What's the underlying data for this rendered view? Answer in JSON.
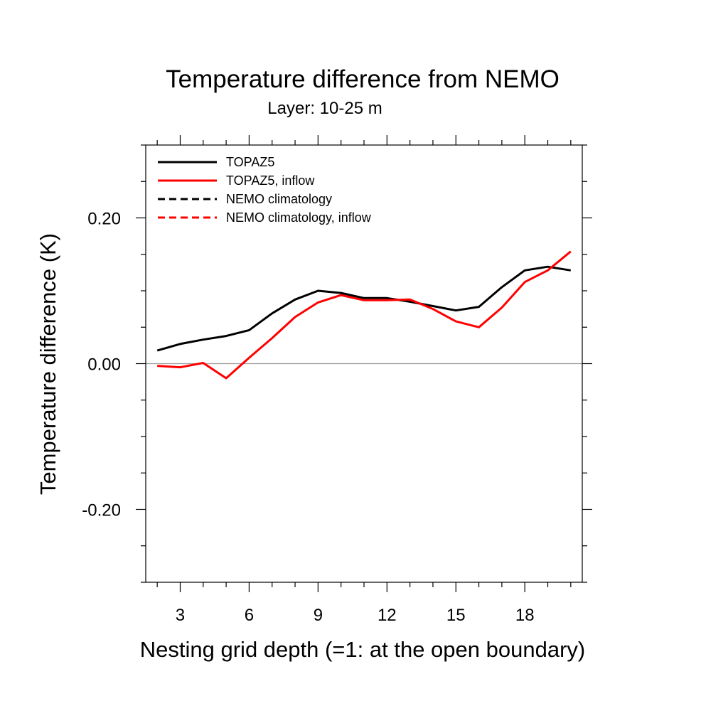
{
  "chart_data": {
    "type": "line",
    "title": "Temperature difference from NEMO",
    "subtitle": "Layer: 10-25 m",
    "xlabel": "Nesting grid depth (=1: at the open boundary)",
    "ylabel": "Temperature difference (K)",
    "xlim": [
      1.5,
      20.5
    ],
    "ylim": [
      -0.3,
      0.3
    ],
    "x_ticks": [
      3,
      6,
      9,
      12,
      15,
      18
    ],
    "x_tick_labels": [
      "3",
      "6",
      "9",
      "12",
      "15",
      "18"
    ],
    "y_ticks": [
      -0.2,
      0.0,
      0.2
    ],
    "y_tick_labels": [
      "-0.20",
      "0.00",
      "0.20"
    ],
    "zero_line": true,
    "grid": false,
    "legend_position": "top-left",
    "legend": [
      {
        "name": "TOPAZ5",
        "color": "#000000",
        "dash": "solid"
      },
      {
        "name": "TOPAZ5, inflow",
        "color": "#ff0000",
        "dash": "solid"
      },
      {
        "name": "NEMO climatology",
        "color": "#000000",
        "dash": "dashed"
      },
      {
        "name": "NEMO climatology, inflow",
        "color": "#ff0000",
        "dash": "dashed"
      }
    ],
    "x": [
      2,
      3,
      4,
      5,
      6,
      7,
      8,
      9,
      10,
      11,
      12,
      13,
      14,
      15,
      16,
      17,
      18,
      19,
      20
    ],
    "series": [
      {
        "name": "TOPAZ5",
        "color": "#000000",
        "dash": "solid",
        "values": [
          0.018,
          0.027,
          0.033,
          0.038,
          0.046,
          0.069,
          0.088,
          0.1,
          0.097,
          0.09,
          0.09,
          0.085,
          0.079,
          0.073,
          0.078,
          0.105,
          0.128,
          0.133,
          0.128
        ]
      },
      {
        "name": "TOPAZ5, inflow",
        "color": "#ff0000",
        "dash": "solid",
        "values": [
          -0.003,
          -0.005,
          0.001,
          -0.02,
          0.008,
          0.035,
          0.064,
          0.084,
          0.094,
          0.087,
          0.087,
          0.088,
          0.075,
          0.058,
          0.05,
          0.077,
          0.112,
          0.128,
          0.154
        ]
      }
    ]
  }
}
